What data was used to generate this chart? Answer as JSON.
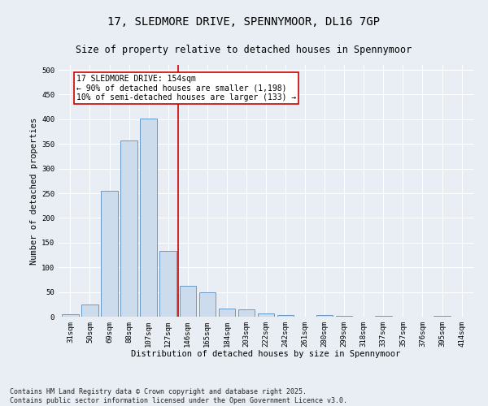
{
  "title": "17, SLEDMORE DRIVE, SPENNYMOOR, DL16 7GP",
  "subtitle": "Size of property relative to detached houses in Spennymoor",
  "xlabel": "Distribution of detached houses by size in Spennymoor",
  "ylabel": "Number of detached properties",
  "categories": [
    "31sqm",
    "50sqm",
    "69sqm",
    "88sqm",
    "107sqm",
    "127sqm",
    "146sqm",
    "165sqm",
    "184sqm",
    "203sqm",
    "222sqm",
    "242sqm",
    "261sqm",
    "280sqm",
    "299sqm",
    "318sqm",
    "337sqm",
    "357sqm",
    "376sqm",
    "395sqm",
    "414sqm"
  ],
  "values": [
    5,
    25,
    255,
    357,
    401,
    133,
    63,
    50,
    16,
    14,
    6,
    3,
    0,
    4,
    1,
    0,
    2,
    0,
    0,
    1,
    0
  ],
  "bar_color": "#ccdcec",
  "bar_edge_color": "#6699cc",
  "vline_x": 6.0,
  "vline_color": "#cc0000",
  "annotation_text": "17 SLEDMORE DRIVE: 154sqm\n← 90% of detached houses are smaller (1,198)\n10% of semi-detached houses are larger (133) →",
  "annotation_box_color": "#ffffff",
  "annotation_box_edge_color": "#cc0000",
  "ylim": [
    0,
    510
  ],
  "yticks": [
    0,
    50,
    100,
    150,
    200,
    250,
    300,
    350,
    400,
    450,
    500
  ],
  "footer": "Contains HM Land Registry data © Crown copyright and database right 2025.\nContains public sector information licensed under the Open Government Licence v3.0.",
  "bg_color": "#e8eef4",
  "grid_color": "#ffffff",
  "title_fontsize": 10,
  "subtitle_fontsize": 8.5,
  "axis_label_fontsize": 7.5,
  "tick_fontsize": 6.5,
  "footer_fontsize": 6,
  "ann_fontsize": 7
}
